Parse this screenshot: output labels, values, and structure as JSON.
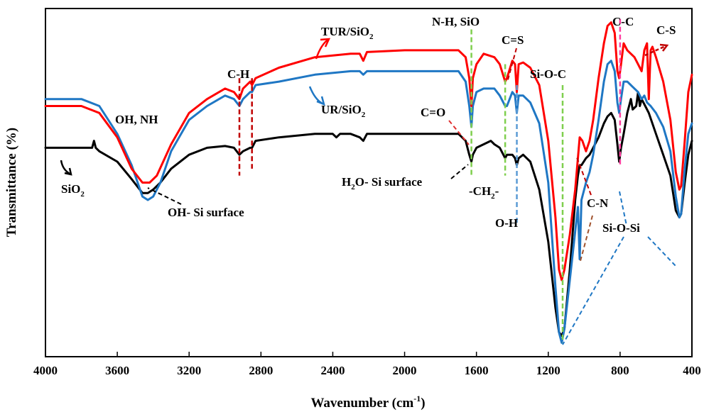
{
  "chart_data": {
    "type": "line",
    "xlabel": "Wavenumber (cm",
    "xlabel_sup": "-1",
    "xlabel_end": ")",
    "ylabel": "Transmittance (%)",
    "xlim": [
      4000,
      400
    ],
    "ylim": [
      0,
      100
    ],
    "x_ticks": [
      {
        "value": 4000,
        "label": "4000"
      },
      {
        "value": 3600,
        "label": "3600"
      },
      {
        "value": 3200,
        "label": "3200"
      },
      {
        "value": 2800,
        "label": "2800"
      },
      {
        "value": 2400,
        "label": "2400"
      },
      {
        "value": 2000,
        "label": "2000"
      },
      {
        "value": 1600,
        "label": "1600"
      },
      {
        "value": 1200,
        "label": "1200"
      },
      {
        "value": 800,
        "label": "800"
      },
      {
        "value": 400,
        "label": "400"
      }
    ],
    "grid": false,
    "series": [
      {
        "name": "TUR/SiO2",
        "color": "#ff0000",
        "points": [
          [
            4000,
            72
          ],
          [
            3800,
            72
          ],
          [
            3700,
            70
          ],
          [
            3600,
            63
          ],
          [
            3520,
            54
          ],
          [
            3460,
            50
          ],
          [
            3420,
            50
          ],
          [
            3380,
            52
          ],
          [
            3300,
            61
          ],
          [
            3200,
            70
          ],
          [
            3100,
            74
          ],
          [
            3000,
            77
          ],
          [
            2950,
            76
          ],
          [
            2920,
            74
          ],
          [
            2900,
            77
          ],
          [
            2860,
            79
          ],
          [
            2850,
            78
          ],
          [
            2830,
            80
          ],
          [
            2700,
            83
          ],
          [
            2500,
            86
          ],
          [
            2300,
            87
          ],
          [
            2250,
            87
          ],
          [
            2230,
            85
          ],
          [
            2210,
            87.5
          ],
          [
            2000,
            88
          ],
          [
            1800,
            88
          ],
          [
            1700,
            88
          ],
          [
            1660,
            86
          ],
          [
            1640,
            80
          ],
          [
            1628,
            72
          ],
          [
            1620,
            80
          ],
          [
            1600,
            84
          ],
          [
            1560,
            87
          ],
          [
            1500,
            86
          ],
          [
            1470,
            84
          ],
          [
            1440,
            79
          ],
          [
            1430,
            80
          ],
          [
            1400,
            85
          ],
          [
            1385,
            84
          ],
          [
            1375,
            76
          ],
          [
            1365,
            84
          ],
          [
            1340,
            84.5
          ],
          [
            1300,
            83
          ],
          [
            1250,
            78
          ],
          [
            1200,
            62
          ],
          [
            1160,
            40
          ],
          [
            1140,
            25
          ],
          [
            1125,
            22
          ],
          [
            1110,
            25
          ],
          [
            1080,
            35
          ],
          [
            1050,
            48
          ],
          [
            1035,
            57
          ],
          [
            1025,
            63
          ],
          [
            1010,
            62
          ],
          [
            990,
            59
          ],
          [
            970,
            62
          ],
          [
            950,
            68
          ],
          [
            920,
            80
          ],
          [
            890,
            90
          ],
          [
            870,
            95
          ],
          [
            850,
            96
          ],
          [
            830,
            93
          ],
          [
            815,
            82
          ],
          [
            805,
            80
          ],
          [
            795,
            84
          ],
          [
            780,
            90
          ],
          [
            760,
            88
          ],
          [
            720,
            86
          ],
          [
            700,
            84
          ],
          [
            680,
            82
          ],
          [
            665,
            88
          ],
          [
            650,
            90
          ],
          [
            640,
            74
          ],
          [
            630,
            88
          ],
          [
            620,
            89
          ],
          [
            600,
            86
          ],
          [
            560,
            79
          ],
          [
            520,
            68
          ],
          [
            490,
            53
          ],
          [
            470,
            48
          ],
          [
            460,
            49
          ],
          [
            440,
            62
          ],
          [
            420,
            76
          ],
          [
            400,
            81
          ]
        ]
      },
      {
        "name": "UR/SiO2",
        "color": "#1f77c4",
        "points": [
          [
            4000,
            74
          ],
          [
            3800,
            74
          ],
          [
            3700,
            72
          ],
          [
            3600,
            64
          ],
          [
            3520,
            55
          ],
          [
            3460,
            46
          ],
          [
            3430,
            45
          ],
          [
            3400,
            46
          ],
          [
            3360,
            50
          ],
          [
            3300,
            59
          ],
          [
            3200,
            68
          ],
          [
            3100,
            72
          ],
          [
            3000,
            75
          ],
          [
            2950,
            74
          ],
          [
            2920,
            72
          ],
          [
            2900,
            74
          ],
          [
            2860,
            76
          ],
          [
            2850,
            76
          ],
          [
            2830,
            78
          ],
          [
            2700,
            79
          ],
          [
            2500,
            81
          ],
          [
            2300,
            82
          ],
          [
            2250,
            82
          ],
          [
            2230,
            81
          ],
          [
            2210,
            82
          ],
          [
            2000,
            82
          ],
          [
            1800,
            82
          ],
          [
            1700,
            82
          ],
          [
            1660,
            79
          ],
          [
            1640,
            72
          ],
          [
            1628,
            66
          ],
          [
            1620,
            72
          ],
          [
            1600,
            76
          ],
          [
            1560,
            77
          ],
          [
            1500,
            77
          ],
          [
            1470,
            75
          ],
          [
            1440,
            72
          ],
          [
            1430,
            72
          ],
          [
            1400,
            76
          ],
          [
            1385,
            75
          ],
          [
            1375,
            70
          ],
          [
            1365,
            75
          ],
          [
            1340,
            75
          ],
          [
            1300,
            73
          ],
          [
            1250,
            67
          ],
          [
            1200,
            50
          ],
          [
            1160,
            20
          ],
          [
            1140,
            7
          ],
          [
            1125,
            4
          ],
          [
            1110,
            8
          ],
          [
            1080,
            22
          ],
          [
            1050,
            36
          ],
          [
            1035,
            43
          ],
          [
            1025,
            28
          ],
          [
            1015,
            45
          ],
          [
            990,
            50
          ],
          [
            970,
            53
          ],
          [
            950,
            58
          ],
          [
            920,
            68
          ],
          [
            890,
            79
          ],
          [
            870,
            84
          ],
          [
            850,
            85
          ],
          [
            830,
            82
          ],
          [
            815,
            73
          ],
          [
            805,
            70
          ],
          [
            795,
            74
          ],
          [
            780,
            79
          ],
          [
            760,
            79
          ],
          [
            720,
            77
          ],
          [
            700,
            76
          ],
          [
            680,
            74
          ],
          [
            665,
            75
          ],
          [
            650,
            73
          ],
          [
            630,
            72
          ],
          [
            600,
            70
          ],
          [
            560,
            66
          ],
          [
            520,
            59
          ],
          [
            490,
            46
          ],
          [
            470,
            40
          ],
          [
            460,
            41
          ],
          [
            440,
            54
          ],
          [
            420,
            64
          ],
          [
            400,
            67
          ]
        ]
      },
      {
        "name": "SiO2",
        "color": "#000000",
        "points": [
          [
            4000,
            60
          ],
          [
            3800,
            60
          ],
          [
            3740,
            60
          ],
          [
            3730,
            62
          ],
          [
            3720,
            60
          ],
          [
            3700,
            59
          ],
          [
            3600,
            56
          ],
          [
            3520,
            51
          ],
          [
            3460,
            47
          ],
          [
            3430,
            47
          ],
          [
            3400,
            48
          ],
          [
            3360,
            50
          ],
          [
            3300,
            54
          ],
          [
            3200,
            58
          ],
          [
            3100,
            60
          ],
          [
            3000,
            60.5
          ],
          [
            2950,
            60
          ],
          [
            2920,
            58
          ],
          [
            2900,
            59
          ],
          [
            2860,
            60
          ],
          [
            2850,
            60
          ],
          [
            2830,
            62
          ],
          [
            2700,
            63
          ],
          [
            2500,
            64
          ],
          [
            2400,
            64
          ],
          [
            2380,
            63
          ],
          [
            2360,
            64
          ],
          [
            2300,
            64
          ],
          [
            2250,
            63
          ],
          [
            2230,
            62
          ],
          [
            2210,
            64
          ],
          [
            2000,
            64
          ],
          [
            1800,
            64
          ],
          [
            1700,
            64
          ],
          [
            1660,
            62
          ],
          [
            1640,
            58
          ],
          [
            1628,
            56
          ],
          [
            1620,
            58
          ],
          [
            1600,
            60
          ],
          [
            1560,
            61
          ],
          [
            1520,
            62
          ],
          [
            1500,
            61
          ],
          [
            1470,
            60
          ],
          [
            1440,
            57
          ],
          [
            1430,
            58
          ],
          [
            1400,
            58
          ],
          [
            1385,
            57
          ],
          [
            1375,
            55
          ],
          [
            1365,
            57
          ],
          [
            1340,
            58
          ],
          [
            1300,
            56
          ],
          [
            1250,
            48
          ],
          [
            1200,
            33
          ],
          [
            1160,
            14
          ],
          [
            1140,
            7
          ],
          [
            1125,
            6
          ],
          [
            1110,
            8
          ],
          [
            1080,
            25
          ],
          [
            1050,
            45
          ],
          [
            1035,
            52
          ],
          [
            1025,
            55
          ],
          [
            1015,
            55
          ],
          [
            990,
            57
          ],
          [
            970,
            58
          ],
          [
            950,
            60
          ],
          [
            920,
            63
          ],
          [
            890,
            67
          ],
          [
            870,
            69
          ],
          [
            850,
            70
          ],
          [
            830,
            68
          ],
          [
            815,
            61
          ],
          [
            805,
            56
          ],
          [
            795,
            60
          ],
          [
            780,
            64
          ],
          [
            760,
            70
          ],
          [
            740,
            74
          ],
          [
            730,
            71
          ],
          [
            710,
            72
          ],
          [
            700,
            76
          ],
          [
            690,
            72
          ],
          [
            680,
            74
          ],
          [
            660,
            72
          ],
          [
            640,
            70
          ],
          [
            600,
            64
          ],
          [
            560,
            58
          ],
          [
            520,
            52
          ],
          [
            490,
            42
          ],
          [
            470,
            40
          ],
          [
            460,
            41
          ],
          [
            440,
            50
          ],
          [
            420,
            58
          ],
          [
            400,
            62
          ]
        ]
      }
    ],
    "labels": {
      "tur": {
        "main": "TUR/SiO",
        "sub": "2"
      },
      "ur": {
        "main": "UR/SiO",
        "sub": "2"
      },
      "sio2": {
        "main": "SiO",
        "sub": "2"
      },
      "oh_nh": "OH, NH",
      "ch": "C-H",
      "nh_sio": "N-H, SiO",
      "cs_double": "C=S",
      "co_double": "C=O",
      "sioc": "Si-O-C",
      "cc": "C-C",
      "cs": "C-S",
      "h2o": {
        "pre": "H",
        "sub": "2",
        "post": "O- Si surface"
      },
      "ch2": {
        "pre": "-CH",
        "sub": "2",
        "post": "-"
      },
      "oh_si": "OH- Si surface",
      "oh": "O-H",
      "cn": "C-N",
      "siosi": "Si-O-Si"
    }
  }
}
